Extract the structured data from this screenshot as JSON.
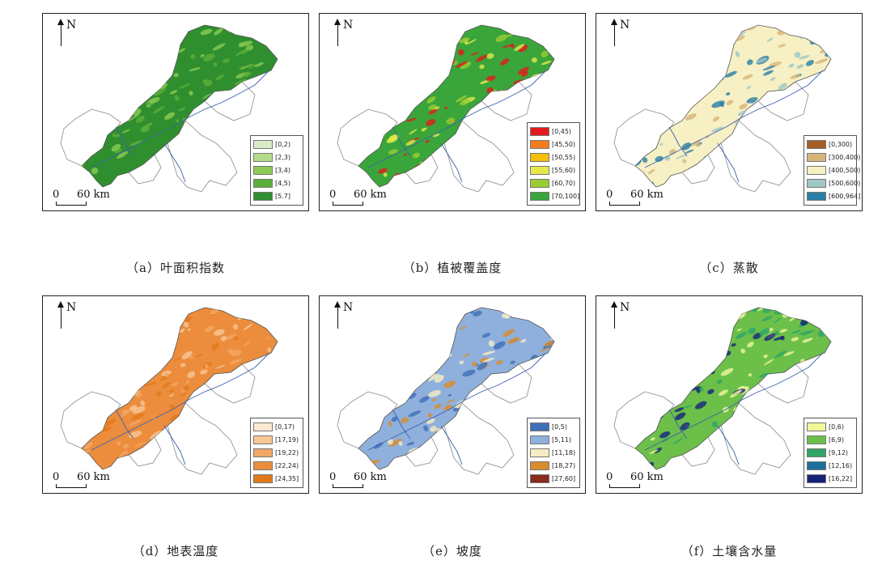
{
  "north_label": "N",
  "scale_zero": "0",
  "scale_label": "60 km",
  "panels": [
    {
      "caption": "（a）叶面积指数",
      "legend": [
        {
          "label": "[0,2)",
          "color": "#d9ecc7"
        },
        {
          "label": "[2,3)",
          "color": "#b5dc8c"
        },
        {
          "label": "[3,4)",
          "color": "#8ccb54"
        },
        {
          "label": "[4,5)",
          "color": "#5cae3a"
        },
        {
          "label": "[5.7]",
          "color": "#2f8f2f"
        }
      ],
      "fills": [
        "#2f8f2f",
        "#5cae3a",
        "#8ccb54"
      ]
    },
    {
      "caption": "（b）植被覆盖度",
      "legend": [
        {
          "label": "[0,45)",
          "color": "#e31a1c"
        },
        {
          "label": "[45,50)",
          "color": "#f47c20"
        },
        {
          "label": "[50,55)",
          "color": "#f5c00a"
        },
        {
          "label": "[55,60)",
          "color": "#e6e84a"
        },
        {
          "label": "[60,70)",
          "color": "#9acd32"
        },
        {
          "label": "[70,100]",
          "color": "#3aa53a"
        }
      ],
      "fills": [
        "#3aa53a",
        "#9acd32",
        "#e6e84a",
        "#e31a1c"
      ]
    },
    {
      "caption": "（c）蒸散",
      "legend": [
        {
          "label": "[0,300)",
          "color": "#a65d23"
        },
        {
          "label": "[300,400)",
          "color": "#d7b57a"
        },
        {
          "label": "[400,500)",
          "color": "#f6f0c4"
        },
        {
          "label": "[500,600)",
          "color": "#9fc7c4"
        },
        {
          "label": "[600,964]",
          "color": "#2a7fa6"
        }
      ],
      "fills": [
        "#f6f0c4",
        "#d7b57a",
        "#9fc7c4",
        "#2a7fa6"
      ]
    },
    {
      "caption": "（d）地表温度",
      "legend": [
        {
          "label": "[0,17)",
          "color": "#fde9d4"
        },
        {
          "label": "[17,19)",
          "color": "#f8c796"
        },
        {
          "label": "[19,22)",
          "color": "#f3a765"
        },
        {
          "label": "[22,24)",
          "color": "#ec8d3d"
        },
        {
          "label": "[24,35]",
          "color": "#e27919"
        }
      ],
      "fills": [
        "#ec8d3d",
        "#f3a765",
        "#e27919",
        "#f8c796"
      ]
    },
    {
      "caption": "（e）坡度",
      "legend": [
        {
          "label": "[0,5)",
          "color": "#3f6fb8"
        },
        {
          "label": "[5,11)",
          "color": "#8fb0dc"
        },
        {
          "label": "[11,18)",
          "color": "#f6edc4"
        },
        {
          "label": "[18,27)",
          "color": "#d98c2b"
        },
        {
          "label": "[27,60]",
          "color": "#8b2a1e"
        }
      ],
      "fills": [
        "#8fb0dc",
        "#3f6fb8",
        "#f6edc4",
        "#d98c2b"
      ]
    },
    {
      "caption": "（f）土壤含水量",
      "legend": [
        {
          "label": "[0,6)",
          "color": "#f2f59a"
        },
        {
          "label": "[6,9)",
          "color": "#6cc04a"
        },
        {
          "label": "[9,12)",
          "color": "#2fa567"
        },
        {
          "label": "[12,16)",
          "color": "#1c6f9c"
        },
        {
          "label": "[16,22]",
          "color": "#16237a"
        }
      ],
      "fills": [
        "#6cc04a",
        "#f2f59a",
        "#2fa567",
        "#16237a"
      ]
    }
  ]
}
